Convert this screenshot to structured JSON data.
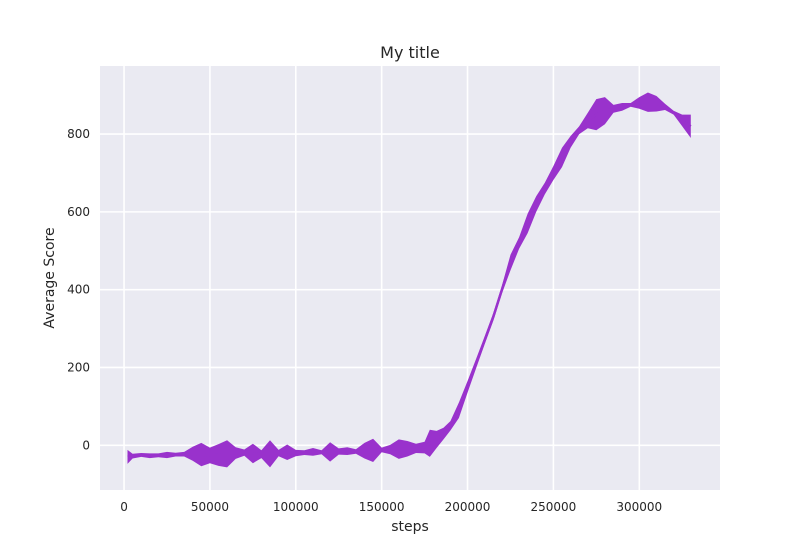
{
  "chart_data": {
    "type": "area",
    "title": "My title",
    "xlabel": "steps",
    "ylabel": "Average Score",
    "xlim": [
      -14000,
      347000
    ],
    "ylim": [
      -115,
      975
    ],
    "xticks": [
      0,
      50000,
      100000,
      150000,
      200000,
      250000,
      300000
    ],
    "xtick_labels": [
      "0",
      "50000",
      "100000",
      "150000",
      "200000",
      "250000",
      "300000"
    ],
    "yticks": [
      0,
      200,
      400,
      600,
      800
    ],
    "ytick_labels": [
      "0",
      "200",
      "400",
      "600",
      "800"
    ],
    "grid": true,
    "colors": {
      "fill": "#9932cc",
      "background": "#eaeaf2",
      "grid": "#ffffff"
    },
    "series": [
      {
        "x": [
          2000,
          5000,
          10000,
          15000,
          20000,
          25000,
          30000,
          35000,
          40000,
          45000,
          50000,
          55000,
          60000,
          65000,
          70000,
          75000,
          80000,
          85000,
          90000,
          95000,
          100000,
          105000,
          110000,
          115000,
          120000,
          125000,
          130000,
          135000,
          140000,
          145000,
          150000,
          155000,
          160000,
          165000,
          170000,
          175000,
          178000,
          182000,
          186000,
          190000,
          195000,
          200000,
          205000,
          210000,
          215000,
          220000,
          225000,
          230000,
          235000,
          240000,
          245000,
          250000,
          255000,
          260000,
          265000,
          270000,
          275000,
          280000,
          285000,
          290000,
          295000,
          300000,
          305000,
          310000,
          315000,
          320000,
          325000,
          330000
        ],
        "mean": [
          -30,
          -28,
          -25,
          -27,
          -26,
          -25,
          -24,
          -23,
          -22,
          -24,
          -26,
          -25,
          -22,
          -20,
          -19,
          -21,
          -23,
          -22,
          -20,
          -18,
          -20,
          -19,
          -17,
          -18,
          -17,
          -16,
          -15,
          -16,
          -14,
          -13,
          -12,
          -11,
          -10,
          -9,
          -8,
          -6,
          5,
          15,
          30,
          50,
          90,
          150,
          210,
          270,
          330,
          400,
          470,
          520,
          570,
          620,
          660,
          700,
          740,
          780,
          810,
          835,
          850,
          860,
          865,
          870,
          875,
          880,
          882,
          878,
          870,
          855,
          835,
          820
        ],
        "spread": [
          18,
          6,
          5,
          6,
          5,
          8,
          5,
          6,
          18,
          30,
          20,
          28,
          35,
          15,
          8,
          25,
          10,
          35,
          8,
          20,
          8,
          6,
          10,
          5,
          25,
          8,
          10,
          6,
          20,
          30,
          6,
          12,
          25,
          20,
          12,
          15,
          35,
          22,
          15,
          12,
          20,
          15,
          12,
          10,
          10,
          10,
          20,
          15,
          25,
          20,
          15,
          18,
          25,
          15,
          10,
          20,
          40,
          35,
          10,
          10,
          5,
          15,
          25,
          20,
          8,
          5,
          15,
          30
        ]
      }
    ]
  }
}
